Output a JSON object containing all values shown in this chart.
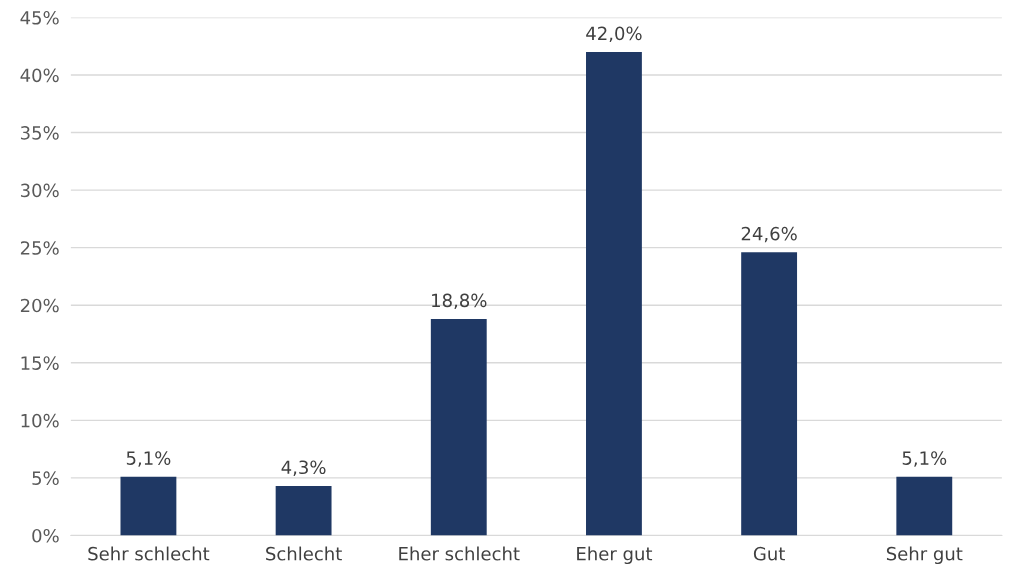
{
  "chart_data": {
    "type": "bar",
    "categories": [
      "Sehr schlecht",
      "Schlecht",
      "Eher schlecht",
      "Eher gut",
      "Gut",
      "Sehr gut"
    ],
    "values": [
      5.1,
      4.3,
      18.8,
      42.0,
      24.6,
      5.1
    ],
    "value_labels": [
      "5,1%",
      "4,3%",
      "18,8%",
      "42,0%",
      "24,6%",
      "5,1%"
    ],
    "color": "#1f3864",
    "ylim": [
      0,
      45
    ],
    "yticks": [
      {
        "value": 0,
        "label": "0%"
      },
      {
        "value": 5,
        "label": "5%"
      },
      {
        "value": 10,
        "label": "10%"
      },
      {
        "value": 15,
        "label": "15%"
      },
      {
        "value": 20,
        "label": "20%"
      },
      {
        "value": 25,
        "label": "25%"
      },
      {
        "value": 30,
        "label": "30%"
      },
      {
        "value": 35,
        "label": "35%"
      },
      {
        "value": 40,
        "label": "40%"
      },
      {
        "value": 45,
        "label": "45%"
      }
    ],
    "grid": "y",
    "legend": false
  }
}
